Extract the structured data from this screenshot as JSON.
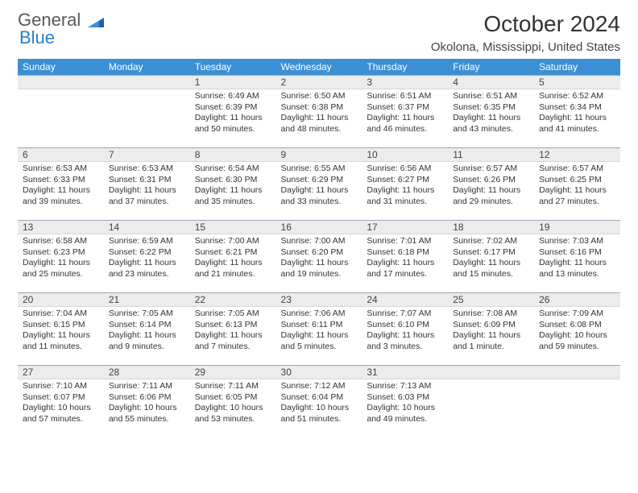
{
  "logo": {
    "line1": "General",
    "line2": "Blue"
  },
  "title": "October 2024",
  "location": "Okolona, Mississippi, United States",
  "colors": {
    "header_bg": "#3c8fd4",
    "header_text": "#ffffff",
    "daynum_bg": "#ececec",
    "daynum_border_top": "#9aa7b5",
    "body_text": "#333333",
    "logo_gray": "#5a5a5a",
    "logo_blue": "#2a7fc9"
  },
  "day_headers": [
    "Sunday",
    "Monday",
    "Tuesday",
    "Wednesday",
    "Thursday",
    "Friday",
    "Saturday"
  ],
  "weeks": [
    [
      {
        "n": "",
        "sr": "",
        "ss": "",
        "dl": ""
      },
      {
        "n": "",
        "sr": "",
        "ss": "",
        "dl": ""
      },
      {
        "n": "1",
        "sr": "Sunrise: 6:49 AM",
        "ss": "Sunset: 6:39 PM",
        "dl": "Daylight: 11 hours and 50 minutes."
      },
      {
        "n": "2",
        "sr": "Sunrise: 6:50 AM",
        "ss": "Sunset: 6:38 PM",
        "dl": "Daylight: 11 hours and 48 minutes."
      },
      {
        "n": "3",
        "sr": "Sunrise: 6:51 AM",
        "ss": "Sunset: 6:37 PM",
        "dl": "Daylight: 11 hours and 46 minutes."
      },
      {
        "n": "4",
        "sr": "Sunrise: 6:51 AM",
        "ss": "Sunset: 6:35 PM",
        "dl": "Daylight: 11 hours and 43 minutes."
      },
      {
        "n": "5",
        "sr": "Sunrise: 6:52 AM",
        "ss": "Sunset: 6:34 PM",
        "dl": "Daylight: 11 hours and 41 minutes."
      }
    ],
    [
      {
        "n": "6",
        "sr": "Sunrise: 6:53 AM",
        "ss": "Sunset: 6:33 PM",
        "dl": "Daylight: 11 hours and 39 minutes."
      },
      {
        "n": "7",
        "sr": "Sunrise: 6:53 AM",
        "ss": "Sunset: 6:31 PM",
        "dl": "Daylight: 11 hours and 37 minutes."
      },
      {
        "n": "8",
        "sr": "Sunrise: 6:54 AM",
        "ss": "Sunset: 6:30 PM",
        "dl": "Daylight: 11 hours and 35 minutes."
      },
      {
        "n": "9",
        "sr": "Sunrise: 6:55 AM",
        "ss": "Sunset: 6:29 PM",
        "dl": "Daylight: 11 hours and 33 minutes."
      },
      {
        "n": "10",
        "sr": "Sunrise: 6:56 AM",
        "ss": "Sunset: 6:27 PM",
        "dl": "Daylight: 11 hours and 31 minutes."
      },
      {
        "n": "11",
        "sr": "Sunrise: 6:57 AM",
        "ss": "Sunset: 6:26 PM",
        "dl": "Daylight: 11 hours and 29 minutes."
      },
      {
        "n": "12",
        "sr": "Sunrise: 6:57 AM",
        "ss": "Sunset: 6:25 PM",
        "dl": "Daylight: 11 hours and 27 minutes."
      }
    ],
    [
      {
        "n": "13",
        "sr": "Sunrise: 6:58 AM",
        "ss": "Sunset: 6:23 PM",
        "dl": "Daylight: 11 hours and 25 minutes."
      },
      {
        "n": "14",
        "sr": "Sunrise: 6:59 AM",
        "ss": "Sunset: 6:22 PM",
        "dl": "Daylight: 11 hours and 23 minutes."
      },
      {
        "n": "15",
        "sr": "Sunrise: 7:00 AM",
        "ss": "Sunset: 6:21 PM",
        "dl": "Daylight: 11 hours and 21 minutes."
      },
      {
        "n": "16",
        "sr": "Sunrise: 7:00 AM",
        "ss": "Sunset: 6:20 PM",
        "dl": "Daylight: 11 hours and 19 minutes."
      },
      {
        "n": "17",
        "sr": "Sunrise: 7:01 AM",
        "ss": "Sunset: 6:18 PM",
        "dl": "Daylight: 11 hours and 17 minutes."
      },
      {
        "n": "18",
        "sr": "Sunrise: 7:02 AM",
        "ss": "Sunset: 6:17 PM",
        "dl": "Daylight: 11 hours and 15 minutes."
      },
      {
        "n": "19",
        "sr": "Sunrise: 7:03 AM",
        "ss": "Sunset: 6:16 PM",
        "dl": "Daylight: 11 hours and 13 minutes."
      }
    ],
    [
      {
        "n": "20",
        "sr": "Sunrise: 7:04 AM",
        "ss": "Sunset: 6:15 PM",
        "dl": "Daylight: 11 hours and 11 minutes."
      },
      {
        "n": "21",
        "sr": "Sunrise: 7:05 AM",
        "ss": "Sunset: 6:14 PM",
        "dl": "Daylight: 11 hours and 9 minutes."
      },
      {
        "n": "22",
        "sr": "Sunrise: 7:05 AM",
        "ss": "Sunset: 6:13 PM",
        "dl": "Daylight: 11 hours and 7 minutes."
      },
      {
        "n": "23",
        "sr": "Sunrise: 7:06 AM",
        "ss": "Sunset: 6:11 PM",
        "dl": "Daylight: 11 hours and 5 minutes."
      },
      {
        "n": "24",
        "sr": "Sunrise: 7:07 AM",
        "ss": "Sunset: 6:10 PM",
        "dl": "Daylight: 11 hours and 3 minutes."
      },
      {
        "n": "25",
        "sr": "Sunrise: 7:08 AM",
        "ss": "Sunset: 6:09 PM",
        "dl": "Daylight: 11 hours and 1 minute."
      },
      {
        "n": "26",
        "sr": "Sunrise: 7:09 AM",
        "ss": "Sunset: 6:08 PM",
        "dl": "Daylight: 10 hours and 59 minutes."
      }
    ],
    [
      {
        "n": "27",
        "sr": "Sunrise: 7:10 AM",
        "ss": "Sunset: 6:07 PM",
        "dl": "Daylight: 10 hours and 57 minutes."
      },
      {
        "n": "28",
        "sr": "Sunrise: 7:11 AM",
        "ss": "Sunset: 6:06 PM",
        "dl": "Daylight: 10 hours and 55 minutes."
      },
      {
        "n": "29",
        "sr": "Sunrise: 7:11 AM",
        "ss": "Sunset: 6:05 PM",
        "dl": "Daylight: 10 hours and 53 minutes."
      },
      {
        "n": "30",
        "sr": "Sunrise: 7:12 AM",
        "ss": "Sunset: 6:04 PM",
        "dl": "Daylight: 10 hours and 51 minutes."
      },
      {
        "n": "31",
        "sr": "Sunrise: 7:13 AM",
        "ss": "Sunset: 6:03 PM",
        "dl": "Daylight: 10 hours and 49 minutes."
      },
      {
        "n": "",
        "sr": "",
        "ss": "",
        "dl": ""
      },
      {
        "n": "",
        "sr": "",
        "ss": "",
        "dl": ""
      }
    ]
  ]
}
